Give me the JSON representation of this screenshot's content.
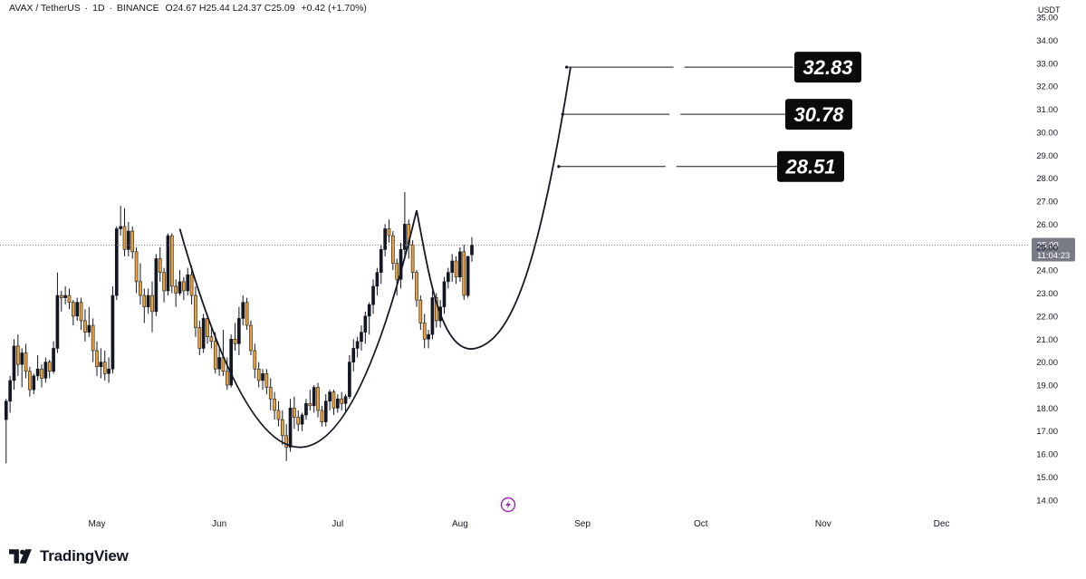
{
  "header": {
    "symbol": "AVAX / TetherUS",
    "interval": "1D",
    "exchange": "BINANCE",
    "open": "O24.67",
    "high": "H25.44",
    "low": "L24.37",
    "close": "C25.09",
    "change": "+0.42 (+1.70%)"
  },
  "currency_label": "USDT",
  "logo": {
    "text": "TradingView",
    "icon": "tradingview-logo-icon"
  },
  "last_price": {
    "value": "25.09",
    "countdown": "11:04:23",
    "color": "#787b86"
  },
  "lightning_icon": {
    "icon": "lightning-icon",
    "color": "#9c27b0"
  },
  "targets": [
    {
      "label": "32.83",
      "value": 32.83
    },
    {
      "label": "30.78",
      "value": 30.78
    },
    {
      "label": "28.51",
      "value": 28.51
    }
  ],
  "colors": {
    "up": "#131722",
    "down": "#f0a030",
    "grid": "#f0f3fa",
    "axis_text": "#131722"
  },
  "chart_data": {
    "type": "candlestick",
    "ylim": [
      13.6,
      35.2
    ],
    "y_ticks": [
      "14.00",
      "15.00",
      "16.00",
      "17.00",
      "18.00",
      "19.00",
      "20.00",
      "21.00",
      "22.00",
      "23.00",
      "24.00",
      "25.00",
      "26.00",
      "27.00",
      "28.00",
      "29.00",
      "30.00",
      "31.00",
      "32.00",
      "33.00",
      "34.00",
      "35.00"
    ],
    "x_ticks": [
      "May",
      "Jun",
      "Jul",
      "Aug",
      "Sep",
      "Oct",
      "Nov",
      "Dec"
    ],
    "date_range": [
      "2024-04-08",
      "2024-12-31"
    ],
    "first_candle_date": "2024-04-08",
    "candles": [
      [
        17.5,
        18.4,
        15.6,
        18.3
      ],
      [
        18.3,
        19.4,
        17.8,
        19.2
      ],
      [
        19.2,
        21.0,
        18.8,
        20.7
      ],
      [
        20.7,
        21.2,
        19.4,
        19.9
      ],
      [
        19.9,
        20.6,
        18.9,
        20.4
      ],
      [
        20.4,
        20.8,
        19.3,
        19.6
      ],
      [
        19.6,
        19.8,
        18.5,
        18.8
      ],
      [
        18.8,
        19.5,
        18.6,
        19.4
      ],
      [
        19.4,
        20.3,
        19.2,
        19.7
      ],
      [
        19.7,
        19.9,
        18.9,
        19.3
      ],
      [
        19.3,
        20.2,
        19.1,
        20.0
      ],
      [
        20.0,
        20.1,
        19.3,
        19.6
      ],
      [
        19.6,
        20.9,
        19.5,
        20.6
      ],
      [
        20.6,
        23.9,
        20.4,
        22.9
      ],
      [
        22.9,
        23.1,
        22.2,
        22.8
      ],
      [
        22.8,
        23.3,
        22.5,
        22.9
      ],
      [
        22.9,
        23.2,
        22.3,
        22.6
      ],
      [
        22.6,
        22.7,
        21.6,
        22.0
      ],
      [
        22.0,
        22.8,
        21.8,
        22.6
      ],
      [
        22.6,
        22.8,
        21.4,
        21.8
      ],
      [
        21.8,
        22.3,
        20.9,
        21.3
      ],
      [
        21.3,
        22.4,
        21.1,
        21.6
      ],
      [
        21.6,
        21.9,
        20.0,
        20.5
      ],
      [
        20.5,
        20.9,
        19.4,
        19.8
      ],
      [
        19.8,
        20.6,
        19.3,
        20.0
      ],
      [
        20.0,
        20.5,
        19.2,
        19.5
      ],
      [
        19.5,
        20.2,
        19.1,
        19.7
      ],
      [
        19.7,
        23.3,
        19.5,
        22.9
      ],
      [
        22.9,
        25.9,
        22.7,
        25.8
      ],
      [
        25.8,
        26.8,
        25.5,
        25.9
      ],
      [
        25.9,
        26.7,
        24.6,
        24.9
      ],
      [
        24.9,
        26.1,
        24.6,
        25.7
      ],
      [
        25.7,
        25.9,
        24.5,
        24.8
      ],
      [
        24.8,
        25.0,
        23.0,
        23.5
      ],
      [
        23.5,
        24.3,
        22.5,
        22.9
      ],
      [
        22.9,
        23.2,
        21.7,
        22.4
      ],
      [
        22.4,
        23.2,
        22.1,
        22.9
      ],
      [
        22.9,
        23.5,
        21.3,
        22.2
      ],
      [
        22.2,
        24.7,
        22.0,
        24.5
      ],
      [
        24.5,
        25.0,
        23.5,
        23.9
      ],
      [
        23.9,
        24.1,
        22.6,
        23.1
      ],
      [
        23.1,
        25.6,
        22.9,
        25.5
      ],
      [
        25.5,
        25.6,
        23.0,
        23.3
      ],
      [
        23.3,
        23.6,
        22.4,
        23.0
      ],
      [
        23.0,
        24.0,
        22.9,
        23.5
      ],
      [
        23.5,
        23.7,
        22.7,
        23.1
      ],
      [
        23.1,
        24.1,
        22.9,
        23.8
      ],
      [
        23.8,
        24.2,
        22.5,
        22.9
      ],
      [
        22.9,
        23.3,
        21.1,
        21.5
      ],
      [
        21.5,
        21.8,
        20.3,
        20.6
      ],
      [
        20.6,
        22.1,
        20.4,
        21.9
      ],
      [
        21.9,
        22.1,
        20.8,
        21.1
      ],
      [
        21.1,
        21.6,
        20.6,
        20.9
      ],
      [
        20.9,
        21.3,
        19.5,
        19.7
      ],
      [
        19.7,
        20.6,
        19.4,
        20.2
      ],
      [
        20.2,
        21.4,
        19.4,
        19.6
      ],
      [
        19.6,
        20.2,
        18.8,
        19.0
      ],
      [
        19.0,
        21.2,
        18.9,
        21.0
      ],
      [
        21.0,
        21.7,
        20.5,
        20.8
      ],
      [
        20.8,
        22.4,
        20.3,
        21.9
      ],
      [
        21.9,
        22.9,
        21.6,
        22.6
      ],
      [
        22.6,
        22.8,
        21.4,
        21.6
      ],
      [
        21.6,
        21.8,
        20.3,
        20.5
      ],
      [
        20.5,
        20.8,
        19.3,
        19.7
      ],
      [
        19.7,
        20.0,
        18.9,
        19.2
      ],
      [
        19.2,
        19.7,
        18.8,
        19.5
      ],
      [
        19.5,
        19.7,
        18.6,
        18.9
      ],
      [
        18.9,
        19.3,
        17.9,
        18.4
      ],
      [
        18.4,
        18.7,
        17.5,
        17.9
      ],
      [
        17.9,
        18.3,
        17.2,
        17.5
      ],
      [
        17.5,
        17.9,
        16.4,
        16.8
      ],
      [
        16.8,
        17.3,
        15.7,
        16.3
      ],
      [
        16.3,
        18.4,
        16.1,
        18.0
      ],
      [
        18.0,
        18.5,
        17.1,
        17.6
      ],
      [
        17.6,
        17.9,
        17.0,
        17.3
      ],
      [
        17.3,
        17.8,
        17.0,
        17.7
      ],
      [
        17.7,
        18.4,
        17.5,
        18.2
      ],
      [
        18.2,
        18.8,
        17.9,
        18.1
      ],
      [
        18.1,
        19.0,
        17.8,
        18.9
      ],
      [
        18.9,
        19.1,
        17.6,
        17.9
      ],
      [
        17.9,
        18.1,
        17.2,
        17.4
      ],
      [
        17.4,
        18.6,
        17.2,
        18.3
      ],
      [
        18.3,
        18.8,
        17.9,
        18.7
      ],
      [
        18.7,
        18.8,
        17.7,
        18.0
      ],
      [
        18.0,
        18.6,
        17.8,
        18.4
      ],
      [
        18.4,
        18.7,
        17.9,
        18.2
      ],
      [
        18.2,
        18.6,
        17.8,
        18.5
      ],
      [
        18.5,
        20.3,
        18.4,
        20.0
      ],
      [
        20.0,
        21.0,
        19.6,
        20.6
      ],
      [
        20.6,
        21.1,
        20.2,
        20.9
      ],
      [
        20.9,
        21.6,
        20.5,
        21.3
      ],
      [
        21.3,
        22.2,
        20.8,
        22.0
      ],
      [
        22.0,
        22.6,
        21.2,
        22.5
      ],
      [
        22.5,
        23.6,
        22.1,
        23.3
      ],
      [
        23.3,
        24.1,
        22.9,
        23.9
      ],
      [
        23.9,
        25.1,
        23.4,
        24.9
      ],
      [
        24.9,
        26.0,
        24.6,
        25.8
      ],
      [
        25.8,
        26.2,
        25.2,
        25.5
      ],
      [
        25.5,
        25.7,
        24.0,
        24.3
      ],
      [
        24.3,
        24.5,
        22.9,
        23.6
      ],
      [
        23.6,
        25.2,
        23.2,
        24.9
      ],
      [
        24.9,
        27.4,
        24.6,
        26.0
      ],
      [
        26.0,
        26.2,
        24.5,
        25.1
      ],
      [
        25.1,
        25.3,
        23.6,
        23.9
      ],
      [
        23.9,
        24.0,
        22.4,
        22.7
      ],
      [
        22.7,
        22.9,
        21.4,
        21.7
      ],
      [
        21.7,
        22.1,
        20.6,
        21.0
      ],
      [
        21.0,
        21.4,
        20.6,
        21.2
      ],
      [
        21.2,
        23.1,
        21.0,
        22.8
      ],
      [
        22.8,
        23.0,
        21.5,
        21.8
      ],
      [
        21.8,
        22.7,
        21.5,
        22.4
      ],
      [
        22.4,
        23.7,
        22.1,
        23.5
      ],
      [
        23.5,
        24.1,
        23.2,
        23.9
      ],
      [
        23.9,
        24.7,
        23.5,
        24.4
      ],
      [
        24.4,
        24.6,
        23.4,
        23.7
      ],
      [
        23.7,
        25.0,
        23.5,
        24.8
      ],
      [
        24.8,
        25.1,
        22.7,
        22.9
      ],
      [
        22.9,
        24.6,
        22.8,
        24.6
      ],
      [
        24.67,
        25.44,
        24.37,
        25.09
      ]
    ],
    "annotations": [
      {
        "type": "cup-arc",
        "points": [
          [
            "2024-05-22",
            25.8
          ],
          [
            "2024-06-22",
            16.3
          ],
          [
            "2024-07-21",
            26.6
          ]
        ]
      },
      {
        "type": "handle-arc",
        "points": [
          [
            "2024-07-21",
            26.6
          ],
          [
            "2024-08-05",
            20.6
          ],
          [
            "2024-08-29",
            32.83
          ]
        ]
      },
      {
        "type": "target-line",
        "from": "2024-08-26",
        "value": 28.51
      },
      {
        "type": "target-line",
        "from": "2024-08-27",
        "value": 30.78
      },
      {
        "type": "target-line",
        "from": "2024-08-28",
        "value": 32.83
      }
    ]
  }
}
